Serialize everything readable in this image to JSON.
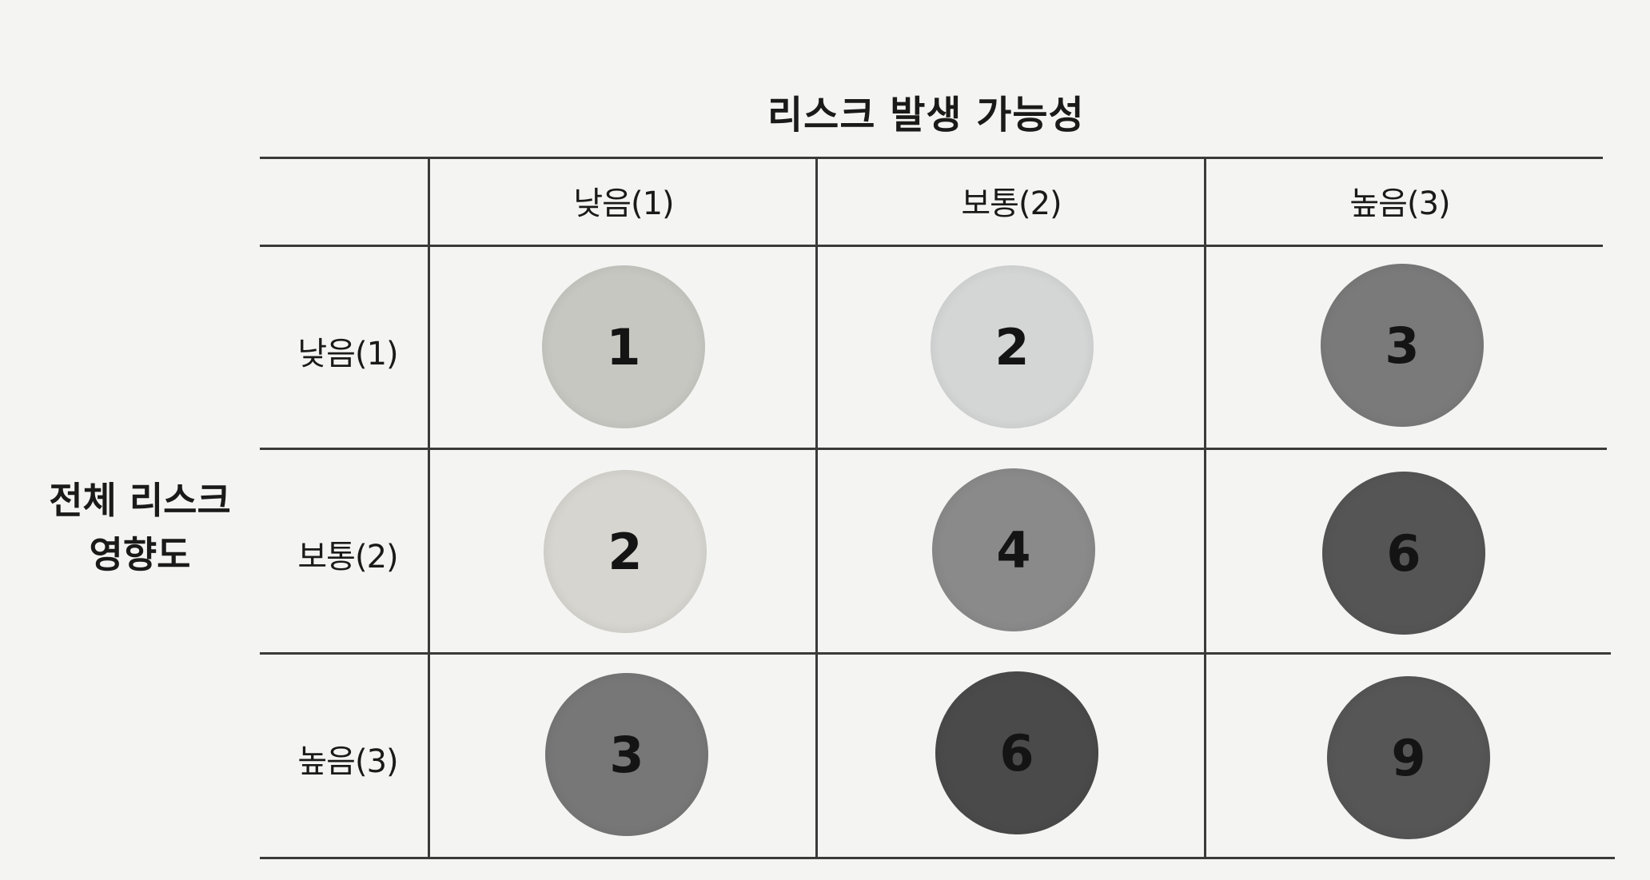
{
  "title": "리스크 발생 가능성",
  "row_axis_label_line1": "전체 리스크",
  "row_axis_label_line2": "영향도",
  "column_headers": [
    "낮음(1)",
    "보통(2)",
    "높음(3)"
  ],
  "row_headers": [
    "낮음(1)",
    "보통(2)",
    "높음(3)"
  ],
  "cells": [
    [
      {
        "value": "1",
        "color": "#c7c7c2"
      },
      {
        "value": "2",
        "color": "#d4d6d6"
      },
      {
        "value": "3",
        "color": "#7a7a7a"
      }
    ],
    [
      {
        "value": "2",
        "color": "#d6d5cf"
      },
      {
        "value": "4",
        "color": "#8a8a8a"
      },
      {
        "value": "6",
        "color": "#555555"
      }
    ],
    [
      {
        "value": "3",
        "color": "#777777"
      },
      {
        "value": "6",
        "color": "#4a4a4a"
      },
      {
        "value": "9",
        "color": "#565656"
      }
    ]
  ]
}
